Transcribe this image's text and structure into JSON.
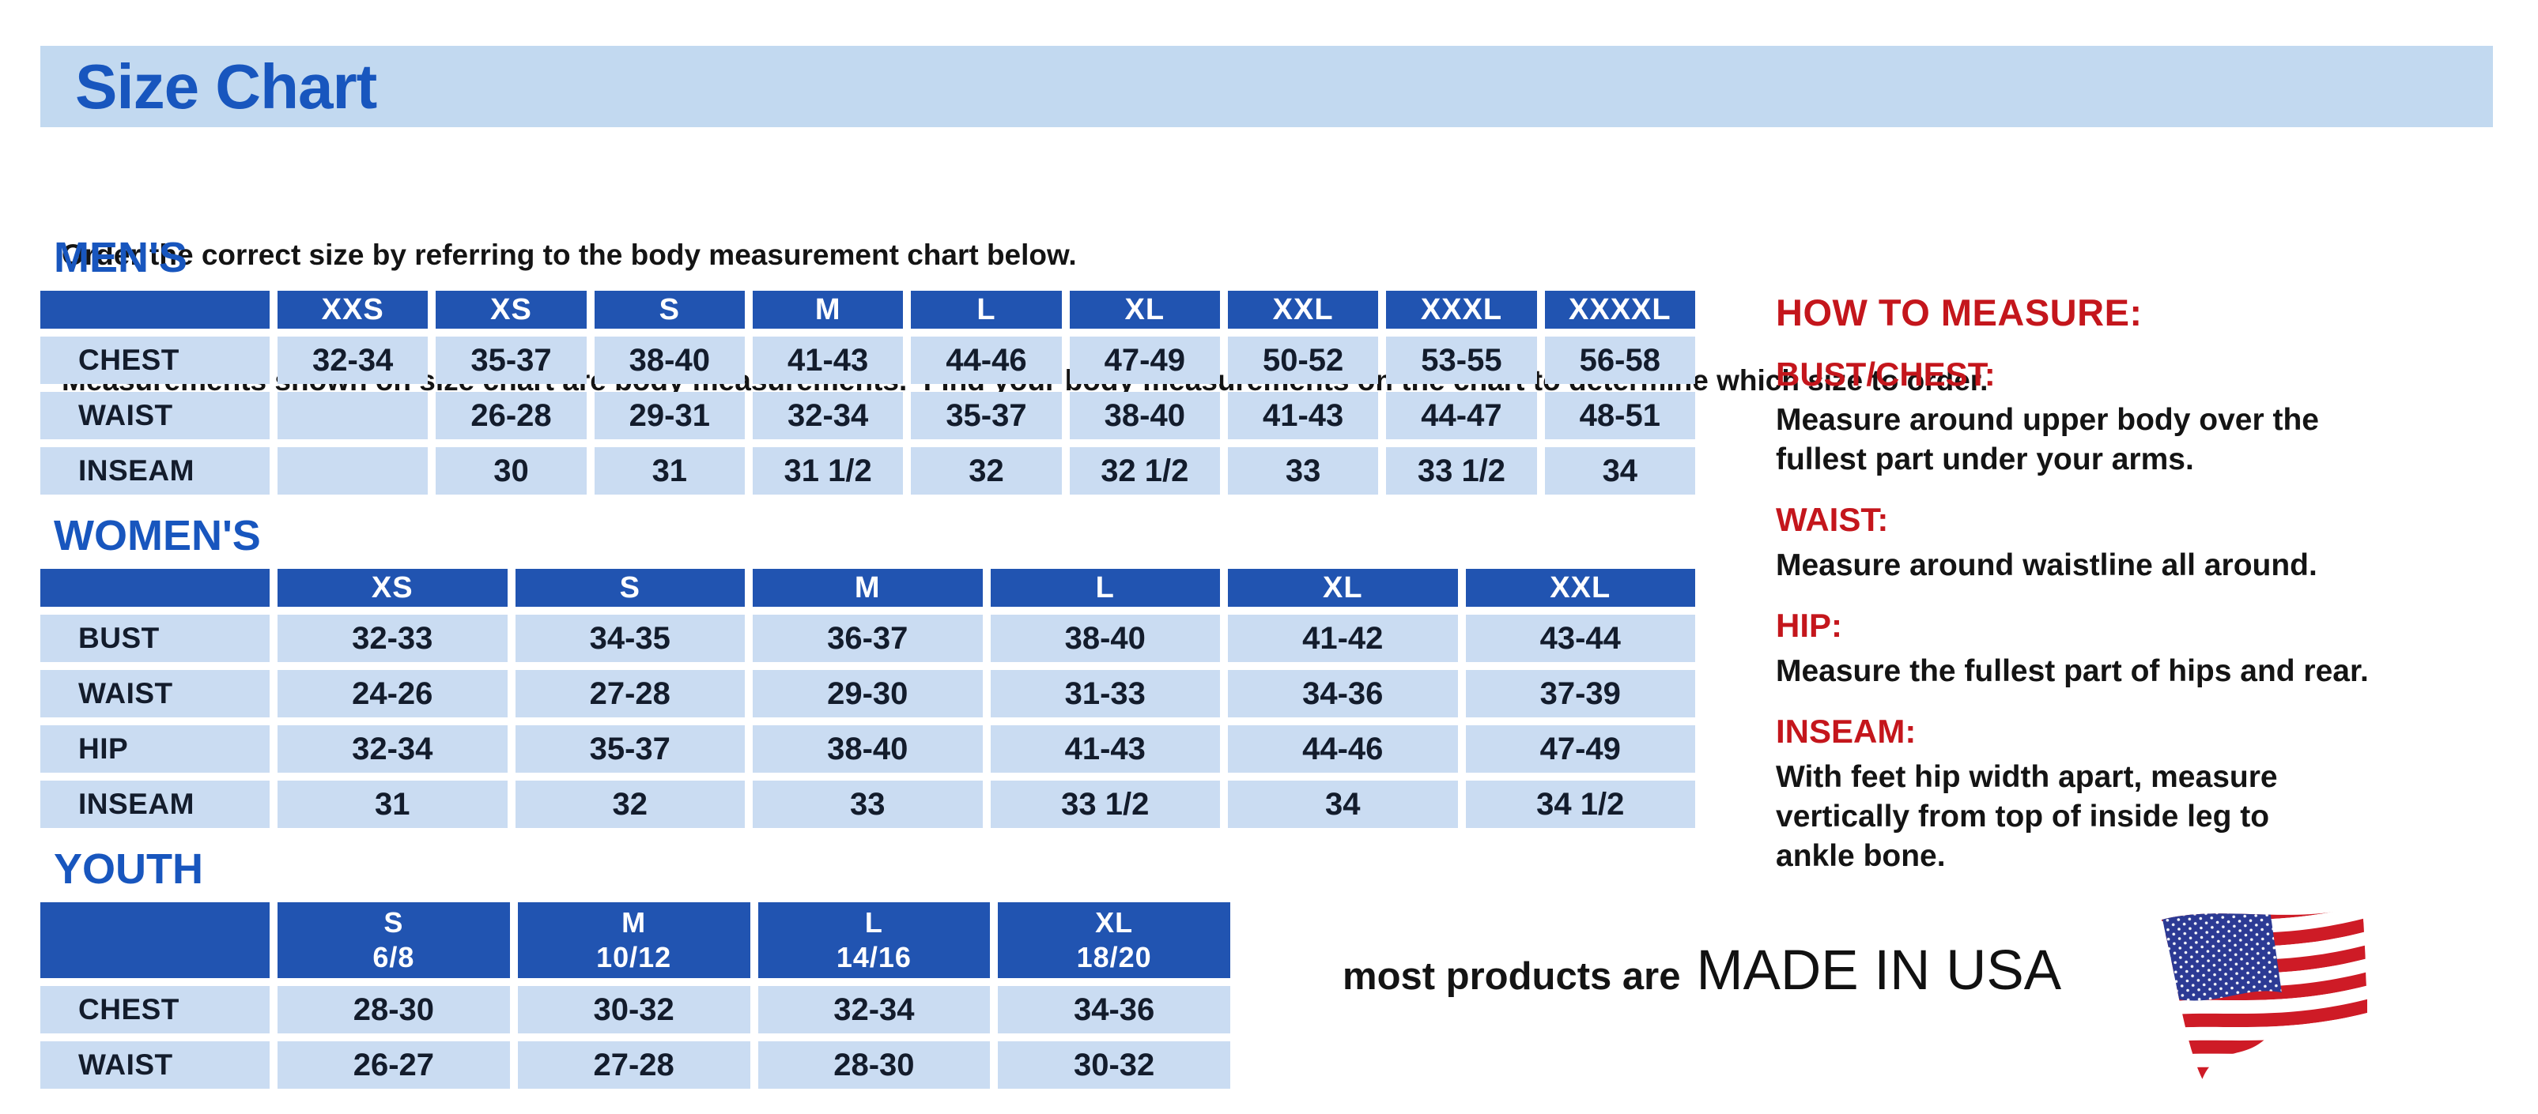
{
  "page": {
    "title": "Size Chart",
    "intro_line1": "Order the correct size by referring to the body measurement chart below.",
    "intro_line2": "Measurements shown on size chart are body measurements.  Find your body measurements on the chart to determine which size to order."
  },
  "tables": {
    "mens": {
      "heading": "MEN'S",
      "columns": [
        "XXS",
        "XS",
        "S",
        "M",
        "L",
        "XL",
        "XXL",
        "XXXL",
        "XXXXL"
      ],
      "rows": [
        {
          "label": "CHEST",
          "values": [
            "32-34",
            "35-37",
            "38-40",
            "41-43",
            "44-46",
            "47-49",
            "50-52",
            "53-55",
            "56-58"
          ]
        },
        {
          "label": "WAIST",
          "values": [
            "",
            "26-28",
            "29-31",
            "32-34",
            "35-37",
            "38-40",
            "41-43",
            "44-47",
            "48-51"
          ]
        },
        {
          "label": "INSEAM",
          "values": [
            "",
            "30",
            "31",
            "31 1/2",
            "32",
            "32 1/2",
            "33",
            "33 1/2",
            "34"
          ]
        }
      ]
    },
    "womens": {
      "heading": "WOMEN'S",
      "columns": [
        "XS",
        "S",
        "M",
        "L",
        "XL",
        "XXL"
      ],
      "rows": [
        {
          "label": "BUST",
          "values": [
            "32-33",
            "34-35",
            "36-37",
            "38-40",
            "41-42",
            "43-44"
          ]
        },
        {
          "label": "WAIST",
          "values": [
            "24-26",
            "27-28",
            "29-30",
            "31-33",
            "34-36",
            "37-39"
          ]
        },
        {
          "label": "HIP",
          "values": [
            "32-34",
            "35-37",
            "38-40",
            "41-43",
            "44-46",
            "47-49"
          ]
        },
        {
          "label": "INSEAM",
          "values": [
            "31",
            "32",
            "33",
            "33 1/2",
            "34",
            "34 1/2"
          ]
        }
      ]
    },
    "youth": {
      "heading": "YOUTH",
      "columns": [
        "S\n6/8",
        "M\n10/12",
        "L\n14/16",
        "XL\n18/20"
      ],
      "rows": [
        {
          "label": "CHEST",
          "values": [
            "28-30",
            "30-32",
            "32-34",
            "34-36"
          ]
        },
        {
          "label": "WAIST",
          "values": [
            "26-27",
            "27-28",
            "28-30",
            "30-32"
          ]
        }
      ]
    }
  },
  "how_to_measure": {
    "heading": "HOW TO MEASURE:",
    "items": [
      {
        "term": "BUST/CHEST:",
        "description": "Measure around upper body over the\nfullest part under your arms."
      },
      {
        "term": "WAIST:",
        "description": "Measure around waistline all around."
      },
      {
        "term": "HIP:",
        "description": "Measure the fullest part of hips and rear."
      },
      {
        "term": "INSEAM:",
        "description": "With feet hip width apart, measure\nvertically from top of inside leg to\nankle bone."
      }
    ]
  },
  "footer": {
    "made_in_prefix": "most products are",
    "made_in": "MADE IN USA",
    "flag_icon": "usa-flag-icon"
  },
  "colors": {
    "titlebar_blue": "#C2D9F0",
    "accent_blue": "#1856BE",
    "table_header_blue": "#2154B1",
    "table_cell_blue": "#CADCF2",
    "cell_text": "#131C2C",
    "heading_red": "#C4161C",
    "flag_red": "#CE1B26",
    "flag_blue": "#2C3A94"
  }
}
